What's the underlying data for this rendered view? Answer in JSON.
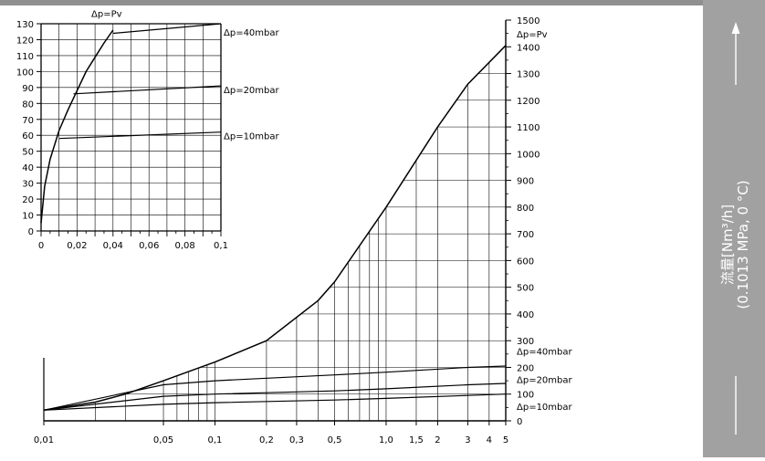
{
  "colors": {
    "panel": "#a1a1a1",
    "band": "#909090",
    "ink": "#000000",
    "text_on_panel": "#ffffff"
  },
  "side_label": {
    "line1": "流量[Nm³/h]",
    "line2": "(0.1013 MPa, 0 °C)",
    "arrow_icon": "arrow-up-icon"
  },
  "chart_data": [
    {
      "type": "line",
      "id": "main",
      "x_scale": "log",
      "xlim": [
        0.01,
        5
      ],
      "ylim": [
        0,
        1500
      ],
      "x_ticks": [
        {
          "value": 0.01,
          "label": "0,01"
        },
        {
          "value": 0.05,
          "label": "0,05"
        },
        {
          "value": 0.1,
          "label": "0,1"
        },
        {
          "value": 0.2,
          "label": "0,2"
        },
        {
          "value": 0.3,
          "label": "0,3"
        },
        {
          "value": 0.5,
          "label": "0,5"
        },
        {
          "value": 1.0,
          "label": "1,0"
        },
        {
          "value": 1.5,
          "label": "1,5"
        },
        {
          "value": 2,
          "label": "2"
        },
        {
          "value": 3,
          "label": "3"
        },
        {
          "value": 4,
          "label": "4"
        },
        {
          "value": 5,
          "label": "5"
        }
      ],
      "y_ticks": [
        {
          "value": 0,
          "label": "0"
        },
        {
          "value": 100,
          "label": "100"
        },
        {
          "value": 200,
          "label": "200"
        },
        {
          "value": 300,
          "label": "300"
        },
        {
          "value": 400,
          "label": "400"
        },
        {
          "value": 500,
          "label": "500"
        },
        {
          "value": 600,
          "label": "600"
        },
        {
          "value": 700,
          "label": "700"
        },
        {
          "value": 800,
          "label": "800"
        },
        {
          "value": 900,
          "label": "900"
        },
        {
          "value": 1000,
          "label": "1000"
        },
        {
          "value": 1100,
          "label": "1100"
        },
        {
          "value": 1200,
          "label": "1200"
        },
        {
          "value": 1300,
          "label": "1300"
        },
        {
          "value": 1400,
          "label": "1400"
        },
        {
          "value": 1500,
          "label": "1500"
        }
      ],
      "series": [
        {
          "name": "Δp=Pv",
          "x": [
            0.01,
            0.02,
            0.03,
            0.05,
            0.1,
            0.2,
            0.4,
            0.5,
            1.0,
            2.0,
            3.0,
            5.0
          ],
          "y": [
            40,
            70,
            100,
            150,
            220,
            300,
            450,
            520,
            800,
            1100,
            1260,
            1405
          ]
        },
        {
          "name": "Δp=40mbar",
          "x": [
            0.01,
            0.05,
            0.1,
            0.5,
            1.0,
            3.0,
            5.0
          ],
          "y": [
            40,
            135,
            150,
            172,
            182,
            200,
            205
          ]
        },
        {
          "name": "Δp=20mbar",
          "x": [
            0.01,
            0.05,
            0.1,
            0.5,
            1.0,
            3.0,
            5.0
          ],
          "y": [
            40,
            92,
            100,
            112,
            120,
            135,
            140
          ]
        },
        {
          "name": "Δp=10mbar",
          "x": [
            0.01,
            0.05,
            0.1,
            0.5,
            1.0,
            3.0,
            5.0
          ],
          "y": [
            40,
            62,
            68,
            78,
            84,
            95,
            100
          ]
        }
      ],
      "labels": [
        {
          "text": "Δp=Pv",
          "y": 1448
        },
        {
          "text": "Δp=40mbar",
          "y": 262
        },
        {
          "text": "Δp=20mbar",
          "y": 155
        },
        {
          "text": "Δp=10mbar",
          "y": 55
        }
      ]
    },
    {
      "type": "line",
      "id": "inset",
      "xlim": [
        0,
        0.1
      ],
      "ylim": [
        0,
        130
      ],
      "x_ticks": [
        {
          "value": 0,
          "label": "0"
        },
        {
          "value": 0.02,
          "label": "0,02"
        },
        {
          "value": 0.04,
          "label": "0,04"
        },
        {
          "value": 0.06,
          "label": "0,06"
        },
        {
          "value": 0.08,
          "label": "0,08"
        },
        {
          "value": 0.1,
          "label": "0,1"
        }
      ],
      "y_ticks": [
        {
          "value": 0,
          "label": "0"
        },
        {
          "value": 10,
          "label": "10"
        },
        {
          "value": 20,
          "label": "20"
        },
        {
          "value": 30,
          "label": "30"
        },
        {
          "value": 40,
          "label": "40"
        },
        {
          "value": 50,
          "label": "50"
        },
        {
          "value": 60,
          "label": "60"
        },
        {
          "value": 70,
          "label": "70"
        },
        {
          "value": 80,
          "label": "80"
        },
        {
          "value": 90,
          "label": "90"
        },
        {
          "value": 100,
          "label": "100"
        },
        {
          "value": 110,
          "label": "110"
        },
        {
          "value": 120,
          "label": "120"
        },
        {
          "value": 130,
          "label": "130"
        }
      ],
      "series": [
        {
          "name": "Δp=Pv",
          "x": [
            0,
            0.002,
            0.005,
            0.01,
            0.015,
            0.02,
            0.025,
            0.03,
            0.035,
            0.04
          ],
          "y": [
            5,
            28,
            45,
            63,
            76,
            88,
            100,
            109,
            118,
            126
          ]
        },
        {
          "name": "Δp=40mbar",
          "x": [
            0.04,
            0.1
          ],
          "y": [
            124,
            130
          ]
        },
        {
          "name": "Δp=20mbar",
          "x": [
            0.018,
            0.1
          ],
          "y": [
            86,
            91
          ]
        },
        {
          "name": "Δp=10mbar",
          "x": [
            0.01,
            0.1
          ],
          "y": [
            58,
            62
          ]
        }
      ],
      "labels": [
        {
          "text": "Δp=Pv",
          "x": 0.032,
          "y": 131
        },
        {
          "text": "Δp=40mbar",
          "x": 0.1,
          "y": 127
        },
        {
          "text": "Δp=20mbar",
          "x": 0.1,
          "y": 91
        },
        {
          "text": "Δp=10mbar",
          "x": 0.1,
          "y": 62
        }
      ]
    }
  ]
}
